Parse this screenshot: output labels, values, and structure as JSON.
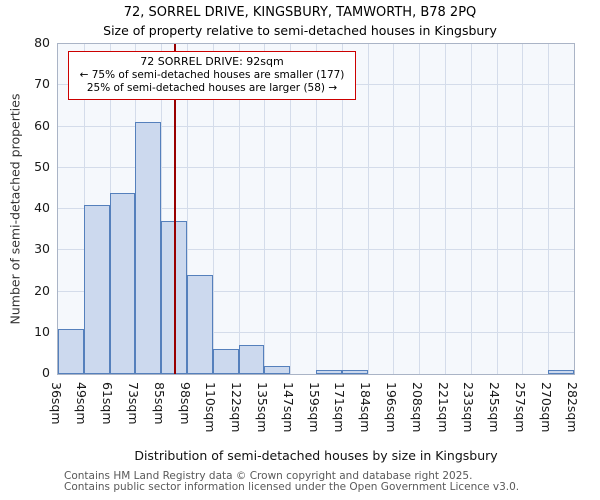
{
  "title": "72, SORREL DRIVE, KINGSBURY, TAMWORTH, B78 2PQ",
  "subtitle": "Size of property relative to semi-detached houses in Kingsbury",
  "annotation": {
    "line1": "72 SORREL DRIVE: 92sqm",
    "line2": "← 75% of semi-detached houses are smaller (177)",
    "line3": "25% of semi-detached houses are larger (58) →"
  },
  "chart_data": {
    "type": "bar",
    "title": "72, SORREL DRIVE, KINGSBURY, TAMWORTH, B78 2PQ",
    "subtitle": "Size of property relative to semi-detached houses in Kingsbury",
    "xlabel": "Distribution of semi-detached houses by size in Kingsbury",
    "ylabel": "Number of semi-detached properties",
    "bin_edges": [
      36,
      49,
      61,
      73,
      85,
      98,
      110,
      122,
      135,
      147,
      159,
      171,
      184,
      196,
      208,
      221,
      233,
      245,
      257,
      270,
      282
    ],
    "bin_labels": [
      "36sqm",
      "49sqm",
      "61sqm",
      "73sqm",
      "85sqm",
      "98sqm",
      "110sqm",
      "122sqm",
      "135sqm",
      "147sqm",
      "159sqm",
      "171sqm",
      "184sqm",
      "196sqm",
      "208sqm",
      "221sqm",
      "233sqm",
      "245sqm",
      "257sqm",
      "270sqm",
      "282sqm"
    ],
    "values": [
      11,
      41,
      44,
      61,
      37,
      24,
      6,
      7,
      2,
      0,
      1,
      1,
      0,
      0,
      0,
      0,
      0,
      0,
      0,
      1
    ],
    "ylim": [
      0,
      80
    ],
    "yticks": [
      0,
      10,
      20,
      30,
      40,
      50,
      60,
      70,
      80
    ],
    "grid": true,
    "legend": false,
    "marker": {
      "value": 92,
      "smaller_pct": 75,
      "smaller_count": 177,
      "larger_pct": 25,
      "larger_count": 58
    },
    "colors": {
      "bar_fill": "#ccd9ee",
      "bar_border": "#5580bc",
      "marker_line": "#990000",
      "annotation_border": "#cc0000",
      "grid": "#d4dcea",
      "plot_bg": "#f5f8fc",
      "plot_border": "#aab4c6"
    }
  },
  "footer": {
    "line1": "Contains HM Land Registry data © Crown copyright and database right 2025.",
    "line2": "Contains public sector information licensed under the Open Government Licence v3.0."
  }
}
